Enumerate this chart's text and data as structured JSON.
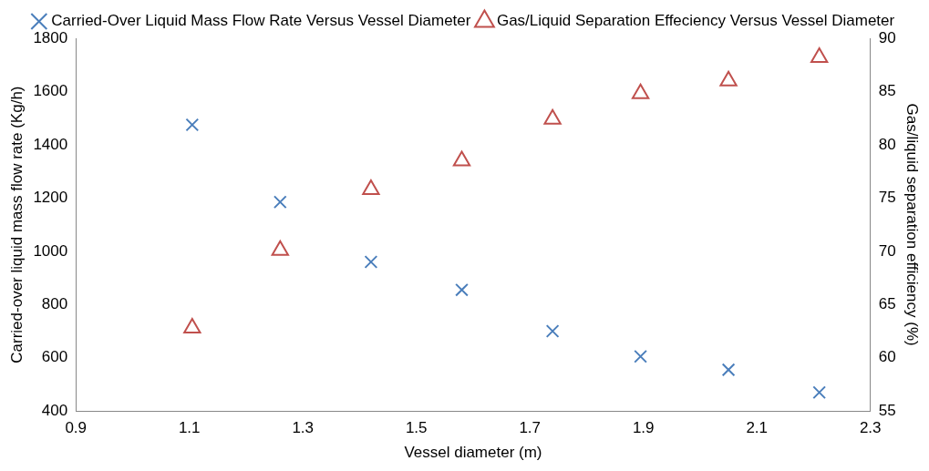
{
  "chart_data": {
    "type": "scatter",
    "xlabel": "Vessel diameter (m)",
    "ylabel": "Carried-over liquid mass flow rate (Kg/h)",
    "y2label": "Gas/liquid separation efficiency (%)",
    "xlim": [
      0.9,
      2.3
    ],
    "xticks": [
      0.9,
      1.1,
      1.3,
      1.5,
      1.7,
      1.9,
      2.1,
      2.3
    ],
    "ylim": [
      400,
      1800
    ],
    "yticks": [
      400,
      600,
      800,
      1000,
      1200,
      1400,
      1600,
      1800
    ],
    "y2lim": [
      55,
      90
    ],
    "y2ticks": [
      55,
      60,
      65,
      70,
      75,
      80,
      85,
      90
    ],
    "grid": false,
    "legend": "top",
    "series": [
      {
        "name": "Carried-Over Liquid Mass Flow Rate Versus Vessel Diameter",
        "color": "#4a7ebb",
        "marker": "cross",
        "x": [
          1.105,
          1.26,
          1.42,
          1.58,
          1.74,
          1.895,
          2.05,
          2.21
        ],
        "values": [
          1475,
          1185,
          960,
          855,
          700,
          605,
          555,
          470
        ]
      },
      {
        "name": "Gas/Liquid Separation Effeciency Versus Vessel Diameter",
        "color": "#c0504d",
        "marker": "triangle",
        "axis": "y2",
        "x": [
          1.105,
          1.26,
          1.42,
          1.58,
          1.74,
          1.895,
          2.05,
          2.21
        ],
        "values": [
          62.8,
          70.1,
          75.8,
          78.5,
          82.4,
          84.8,
          86.0,
          88.2
        ]
      }
    ]
  }
}
